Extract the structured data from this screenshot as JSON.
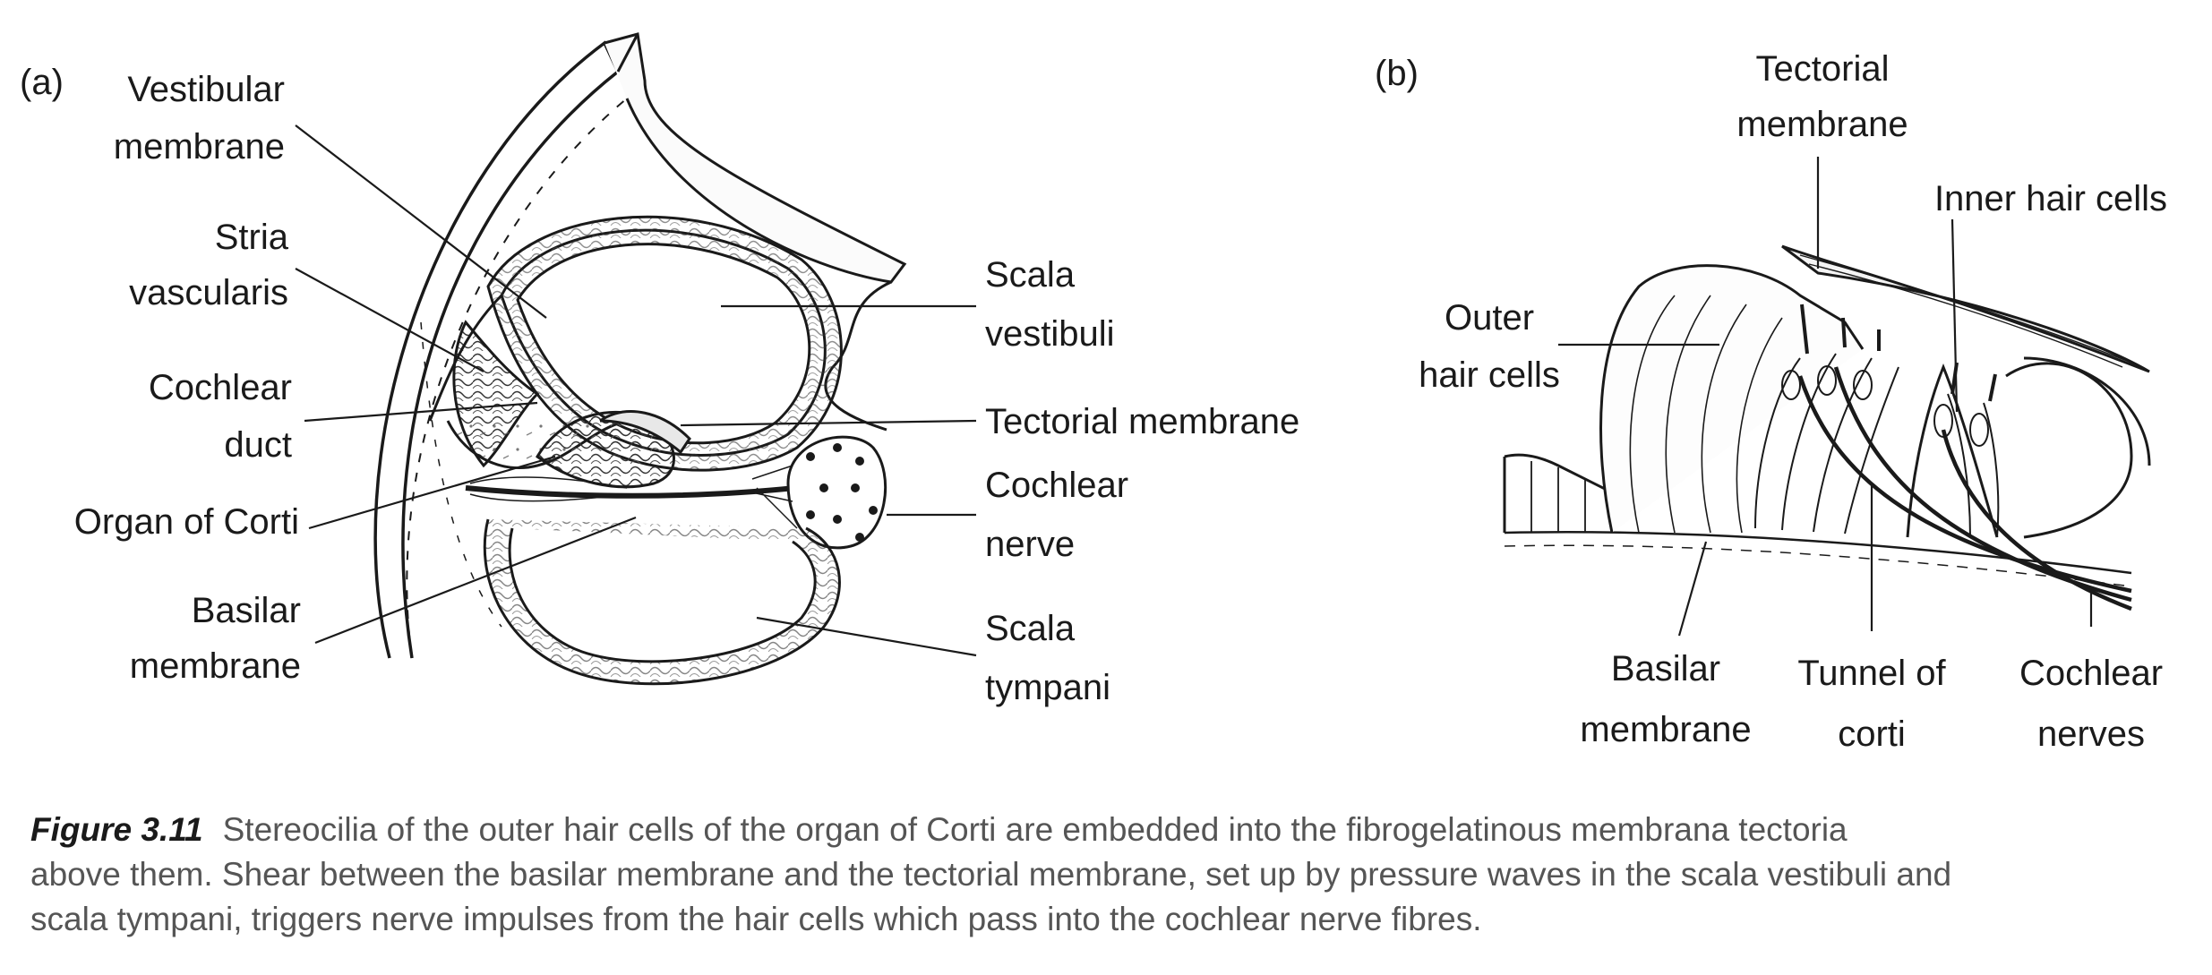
{
  "panel_a": {
    "tag": "(a)",
    "labels": {
      "vestibular_membrane": [
        "Vestibular",
        "membrane"
      ],
      "stria_vascularis": [
        "Stria",
        "vascularis"
      ],
      "cochlear_duct": [
        "Cochlear",
        "duct"
      ],
      "organ_of_corti": [
        "Organ of Corti"
      ],
      "basilar_membrane": [
        "Basilar",
        "membrane"
      ],
      "scala_vestibuli": [
        "Scala",
        "vestibuli"
      ],
      "tectorial_membrane": [
        "Tectorial membrane"
      ],
      "cochlear_nerve": [
        "Cochlear",
        "nerve"
      ],
      "scala_tympani": [
        "Scala",
        "tympani"
      ]
    }
  },
  "panel_b": {
    "tag": "(b)",
    "labels": {
      "tectorial_membrane": [
        "Tectorial",
        "membrane"
      ],
      "inner_hair_cells": [
        "Inner hair cells"
      ],
      "outer_hair_cells": [
        "Outer",
        "hair cells"
      ],
      "basilar_membrane": [
        "Basilar",
        "membrane"
      ],
      "tunnel_of_corti": [
        "Tunnel of",
        "corti"
      ],
      "cochlear_nerves": [
        "Cochlear",
        "nerves"
      ]
    }
  },
  "caption": {
    "figure_number": "Figure 3.11",
    "lines": [
      "Stereocilia of the outer hair cells of the organ of Corti are embedded into the fibrogelatinous membrana tectoria",
      "above them. Shear between the basilar membrane and the tectorial membrane, set up by pressure waves in the scala vestibuli and",
      "scala tympani, triggers nerve impulses from the hair cells which pass into the cochlear nerve fibres."
    ]
  }
}
